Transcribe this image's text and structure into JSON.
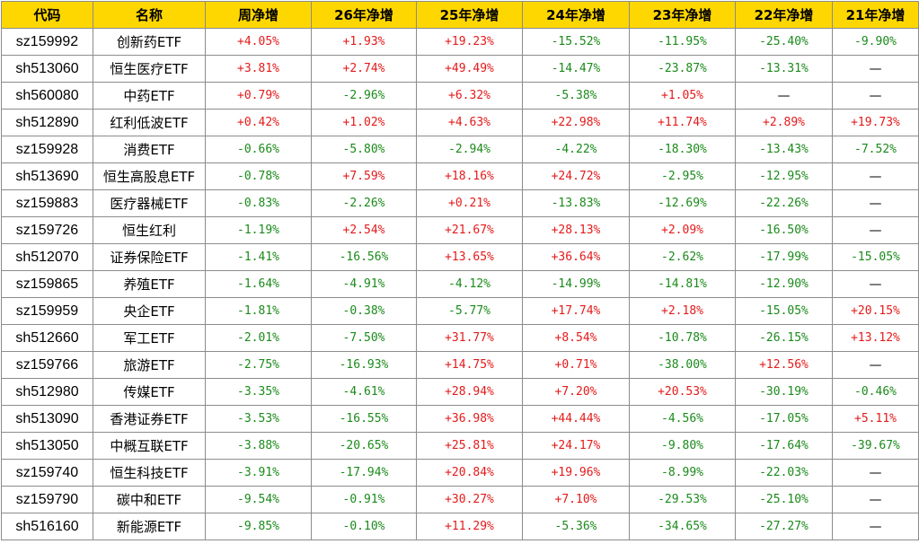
{
  "headers": [
    "代码",
    "名称",
    "周净增",
    "26年净增",
    "25年净增",
    "24年净增",
    "23年净增",
    "22年净增",
    "21年净增"
  ],
  "colors": {
    "header_bg": "#ffd700",
    "positive": "#e41a1a",
    "negative": "#1a8a1a",
    "border": "#8c8c8c"
  },
  "rows": [
    [
      "sz159992",
      "创新药ETF",
      "+4.05%",
      "+1.93%",
      "+19.23%",
      "-15.52%",
      "-11.95%",
      "-25.40%",
      "-9.90%"
    ],
    [
      "sh513060",
      "恒生医疗ETF",
      "+3.81%",
      "+2.74%",
      "+49.49%",
      "-14.47%",
      "-23.87%",
      "-13.31%",
      "—"
    ],
    [
      "sh560080",
      "中药ETF",
      "+0.79%",
      "-2.96%",
      "+6.32%",
      "-5.38%",
      "+1.05%",
      "—",
      "—"
    ],
    [
      "sh512890",
      "红利低波ETF",
      "+0.42%",
      "+1.02%",
      "+4.63%",
      "+22.98%",
      "+11.74%",
      "+2.89%",
      "+19.73%"
    ],
    [
      "sz159928",
      "消费ETF",
      "-0.66%",
      "-5.80%",
      "-2.94%",
      "-4.22%",
      "-18.30%",
      "-13.43%",
      "-7.52%"
    ],
    [
      "sh513690",
      "恒生高股息ETF",
      "-0.78%",
      "+7.59%",
      "+18.16%",
      "+24.72%",
      "-2.95%",
      "-12.95%",
      "—"
    ],
    [
      "sz159883",
      "医疗器械ETF",
      "-0.83%",
      "-2.26%",
      "+0.21%",
      "-13.83%",
      "-12.69%",
      "-22.26%",
      "—"
    ],
    [
      "sz159726",
      "恒生红利",
      "-1.19%",
      "+2.54%",
      "+21.67%",
      "+28.13%",
      "+2.09%",
      "-16.50%",
      "—"
    ],
    [
      "sh512070",
      "证券保险ETF",
      "-1.41%",
      "-16.56%",
      "+13.65%",
      "+36.64%",
      "-2.62%",
      "-17.99%",
      "-15.05%"
    ],
    [
      "sz159865",
      "养殖ETF",
      "-1.64%",
      "-4.91%",
      "-4.12%",
      "-14.99%",
      "-14.81%",
      "-12.90%",
      "—"
    ],
    [
      "sz159959",
      "央企ETF",
      "-1.81%",
      "-0.38%",
      "-5.77%",
      "+17.74%",
      "+2.18%",
      "-15.05%",
      "+20.15%"
    ],
    [
      "sh512660",
      "军工ETF",
      "-2.01%",
      "-7.50%",
      "+31.77%",
      "+8.54%",
      "-10.78%",
      "-26.15%",
      "+13.12%"
    ],
    [
      "sz159766",
      "旅游ETF",
      "-2.75%",
      "-16.93%",
      "+14.75%",
      "+0.71%",
      "-38.00%",
      "+12.56%",
      "—"
    ],
    [
      "sh512980",
      "传媒ETF",
      "-3.35%",
      "-4.61%",
      "+28.94%",
      "+7.20%",
      "+20.53%",
      "-30.19%",
      "-0.46%"
    ],
    [
      "sh513090",
      "香港证券ETF",
      "-3.53%",
      "-16.55%",
      "+36.98%",
      "+44.44%",
      "-4.56%",
      "-17.05%",
      "+5.11%"
    ],
    [
      "sh513050",
      "中概互联ETF",
      "-3.88%",
      "-20.65%",
      "+25.81%",
      "+24.17%",
      "-9.80%",
      "-17.64%",
      "-39.67%"
    ],
    [
      "sz159740",
      "恒生科技ETF",
      "-3.91%",
      "-17.94%",
      "+20.84%",
      "+19.96%",
      "-8.99%",
      "-22.03%",
      "—"
    ],
    [
      "sz159790",
      "碳中和ETF",
      "-9.54%",
      "-0.91%",
      "+30.27%",
      "+7.10%",
      "-29.53%",
      "-25.10%",
      "—"
    ],
    [
      "sh516160",
      "新能源ETF",
      "-9.85%",
      "-0.10%",
      "+11.29%",
      "-5.36%",
      "-34.65%",
      "-27.27%",
      "—"
    ]
  ]
}
